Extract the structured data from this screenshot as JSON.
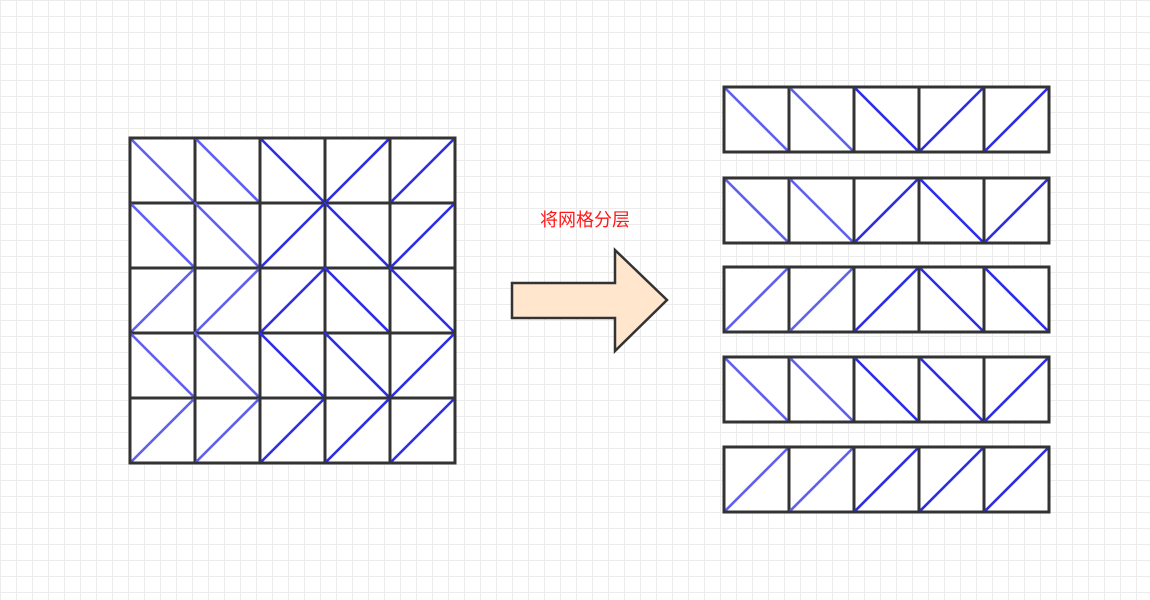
{
  "caption": "将网格分层",
  "colors": {
    "cell_border": "#333333",
    "diagonal_light": "#6060ee",
    "diagonal_dark": "#2d2de6",
    "arrow_fill": "#ffe6cc",
    "caption": "#ff1a1a",
    "grid_line": "#ececec"
  },
  "grid": {
    "rows": 5,
    "cols": 5,
    "diagonals": [
      [
        "\\",
        "\\",
        "\\",
        "/",
        "/"
      ],
      [
        "\\",
        "\\",
        "/",
        "\\",
        "/"
      ],
      [
        "/",
        "/",
        "/",
        "\\",
        "\\"
      ],
      [
        "\\",
        "\\",
        "\\",
        "\\",
        "/"
      ],
      [
        "/",
        "/",
        "/",
        "/",
        "/"
      ]
    ],
    "shade": [
      [
        "light",
        "light",
        "dark",
        "dark",
        "dark"
      ],
      [
        "light",
        "light",
        "dark",
        "dark",
        "dark"
      ],
      [
        "light",
        "light",
        "dark",
        "dark",
        "dark"
      ],
      [
        "light",
        "light",
        "dark",
        "dark",
        "dark"
      ],
      [
        "light",
        "light",
        "dark",
        "dark",
        "dark"
      ]
    ]
  }
}
